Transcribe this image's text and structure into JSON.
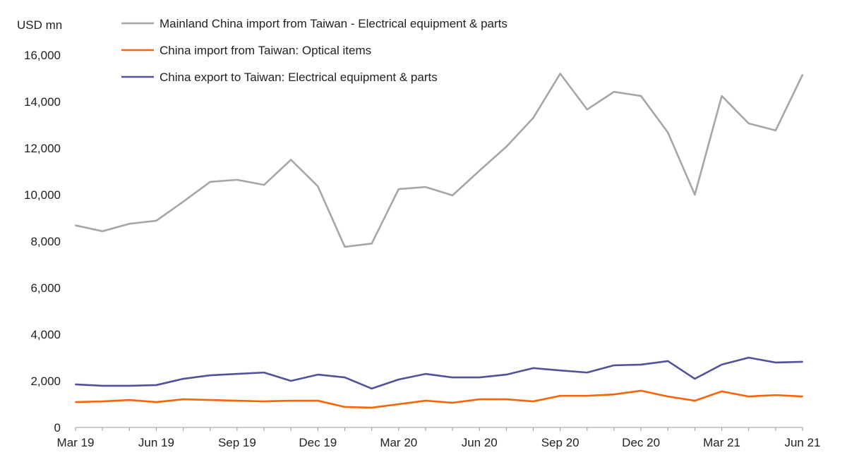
{
  "chart_data": {
    "type": "line",
    "ylabel": "USD mn",
    "ylim": [
      0,
      16000
    ],
    "yticks": [
      "0",
      "2,000",
      "4,000",
      "6,000",
      "8,000",
      "10,000",
      "12,000",
      "14,000",
      "16,000"
    ],
    "ytick_values": [
      0,
      2000,
      4000,
      6000,
      8000,
      10000,
      12000,
      14000,
      16000
    ],
    "x": [
      "Mar 19",
      "Apr 19",
      "May 19",
      "Jun 19",
      "Jul 19",
      "Aug 19",
      "Sep 19",
      "Oct 19",
      "Nov 19",
      "Dec 19",
      "Jan 20",
      "Feb 20",
      "Mar 20",
      "Apr 20",
      "May 20",
      "Jun 20",
      "Jul 20",
      "Aug 20",
      "Sep 20",
      "Oct 20",
      "Nov 20",
      "Dec 20",
      "Jan 21",
      "Feb 21",
      "Mar 21",
      "Apr 21",
      "May 21",
      "Jun 21"
    ],
    "xtick_labels": [
      "Mar 19",
      "Jun 19",
      "Sep 19",
      "Dec 19",
      "Mar 20",
      "Jun 20",
      "Sep 20",
      "Dec 20",
      "Mar 21",
      "Jun 21"
    ],
    "grid": false,
    "legend_position": "top",
    "series": [
      {
        "name": "Mainland China import from Taiwan - Electrical equipment & parts",
        "color": "#a6a6a6",
        "values": [
          8680,
          8430,
          8750,
          8880,
          9700,
          10550,
          10640,
          10420,
          11500,
          10360,
          7760,
          7900,
          10240,
          10330,
          9970,
          11030,
          12060,
          13300,
          15200,
          13660,
          14420,
          14240,
          12670,
          10000,
          14240,
          13060,
          12760,
          15150
        ]
      },
      {
        "name": "China import from Taiwan: Optical items",
        "color": "#ff6200",
        "values": [
          1090,
          1120,
          1180,
          1090,
          1210,
          1180,
          1150,
          1120,
          1150,
          1150,
          880,
          850,
          1000,
          1150,
          1060,
          1210,
          1210,
          1120,
          1360,
          1360,
          1420,
          1580,
          1330,
          1150,
          1550,
          1330,
          1390,
          1330
        ]
      },
      {
        "name": "China export to Taiwan: Electrical equipment & parts",
        "color": "#525199",
        "values": [
          1850,
          1790,
          1790,
          1820,
          2090,
          2240,
          2300,
          2360,
          2000,
          2270,
          2150,
          1670,
          2060,
          2300,
          2150,
          2150,
          2270,
          2550,
          2450,
          2360,
          2670,
          2700,
          2850,
          2090,
          2700,
          3000,
          2790,
          2820
        ]
      }
    ]
  }
}
